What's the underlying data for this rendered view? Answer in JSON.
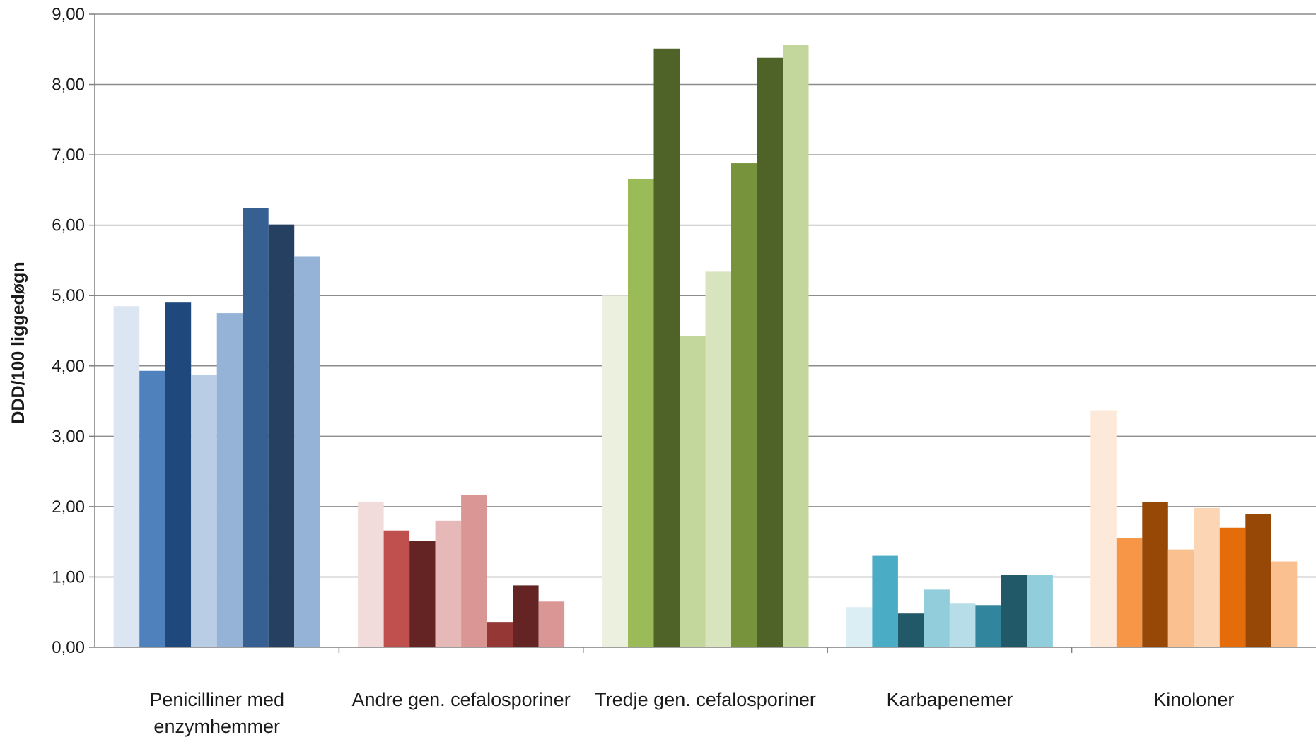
{
  "chart_data": {
    "type": "bar",
    "ylabel": "DDD/100 liggedøgn",
    "xlabel": "",
    "ylim": [
      0,
      9
    ],
    "y_ticks": [
      "0,00",
      "1,00",
      "2,00",
      "3,00",
      "4,00",
      "5,00",
      "6,00",
      "7,00",
      "8,00",
      "9,00"
    ],
    "grid": true,
    "legend": "none",
    "categories": [
      {
        "label": [
          "Penicilliner med",
          "enzymhemmer"
        ],
        "values": [
          4.85,
          3.93,
          4.9,
          3.87,
          4.75,
          6.24,
          6.01,
          5.56
        ],
        "colors": [
          "#dce6f2",
          "#4f81bd",
          "#1f497d",
          "#b9cde5",
          "#95b3d7",
          "#366092",
          "#254061",
          "#95b3d7"
        ]
      },
      {
        "label": [
          "Andre gen. cefalosporiner"
        ],
        "values": [
          2.07,
          1.66,
          1.51,
          1.8,
          2.17,
          0.36,
          0.88,
          0.65
        ],
        "colors": [
          "#f2dcdb",
          "#c0504d",
          "#632423",
          "#e6b9b8",
          "#d99694",
          "#953735",
          "#632423",
          "#d99694"
        ]
      },
      {
        "label": [
          "Tredje gen. cefalosporiner"
        ],
        "values": [
          5.0,
          6.66,
          8.51,
          4.42,
          5.34,
          6.88,
          8.38,
          8.56
        ],
        "colors": [
          "#ebf1de",
          "#9bbb59",
          "#4f6228",
          "#c3d69b",
          "#d7e4bd",
          "#77933c",
          "#4f6228",
          "#c3d69b"
        ]
      },
      {
        "label": [
          "Karbapenemer"
        ],
        "values": [
          0.57,
          1.3,
          0.48,
          0.82,
          0.62,
          0.6,
          1.03,
          1.03
        ],
        "colors": [
          "#daeef3",
          "#4bacc6",
          "#215968",
          "#92cddc",
          "#b7dde8",
          "#31859c",
          "#215968",
          "#92cddc"
        ]
      },
      {
        "label": [
          "Kinoloner"
        ],
        "values": [
          3.37,
          1.55,
          2.06,
          1.39,
          1.98,
          1.7,
          1.89,
          1.22
        ],
        "colors": [
          "#fde9d9",
          "#f79646",
          "#974806",
          "#fac090",
          "#fcd5b4",
          "#e46c0a",
          "#974806",
          "#fac090"
        ]
      }
    ],
    "gridline_color": "#8c8c8c",
    "axis_color": "#7f7f7f"
  }
}
